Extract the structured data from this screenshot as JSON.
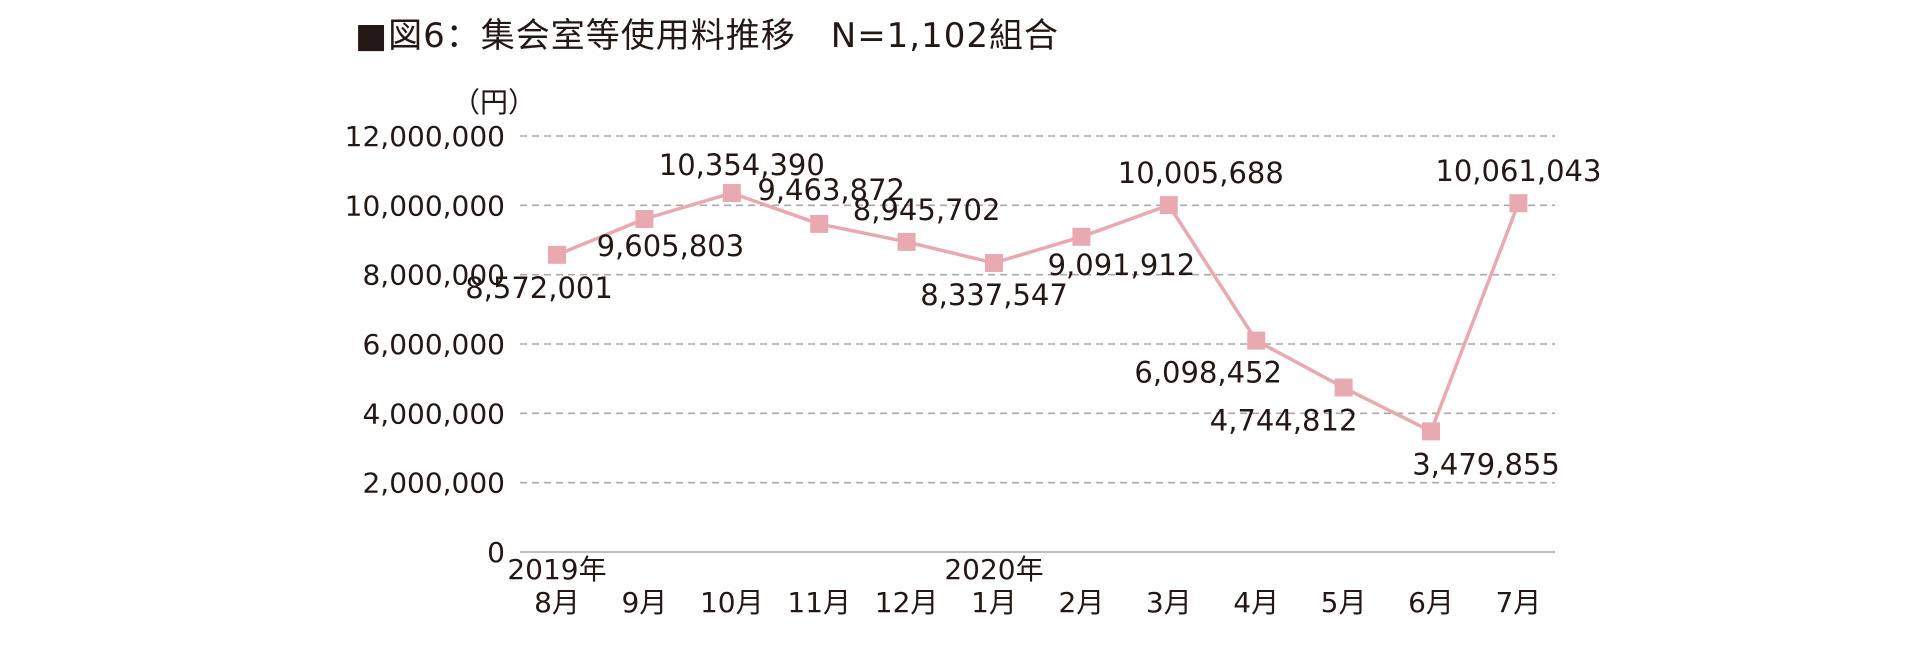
{
  "chart_data": {
    "type": "line",
    "title": "■図6：集会室等使用料推移　N=1,102組合",
    "unit_label": "（円）",
    "categories": [
      "8月",
      "9月",
      "10月",
      "11月",
      "12月",
      "1月",
      "2月",
      "3月",
      "4月",
      "5月",
      "6月",
      "7月"
    ],
    "year_labels": [
      {
        "index": 0,
        "text": "2019年"
      },
      {
        "index": 5,
        "text": "2020年"
      }
    ],
    "series": [
      {
        "values": [
          8572001,
          9605803,
          10354390,
          9463872,
          8945702,
          8337547,
          9091912,
          10005688,
          6098452,
          4744812,
          3479855,
          10061043
        ]
      }
    ],
    "data_labels": [
      "8,572,001",
      "9,605,803",
      "10,354,390",
      "9,463,872",
      "8,945,702",
      "8,337,547",
      "9,091,912",
      "10,005,688",
      "6,098,452",
      "4,744,812",
      "3,479,855",
      "10,061,043"
    ],
    "y_ticks": [
      {
        "value": 0,
        "label": "0"
      },
      {
        "value": 2000000,
        "label": "2,000,000"
      },
      {
        "value": 4000000,
        "label": "4,000,000"
      },
      {
        "value": 6000000,
        "label": "6,000,000"
      },
      {
        "value": 8000000,
        "label": "8,000,000"
      },
      {
        "value": 10000000,
        "label": "10,000,000"
      },
      {
        "value": 12000000,
        "label": "12,000,000"
      }
    ],
    "ylim": [
      0,
      12000000
    ],
    "grid": true,
    "legend": "none",
    "colors": {
      "line": "#e8aab0",
      "marker": "#e8aab0",
      "grid": "#a9a9a9",
      "text": "#231815"
    }
  }
}
